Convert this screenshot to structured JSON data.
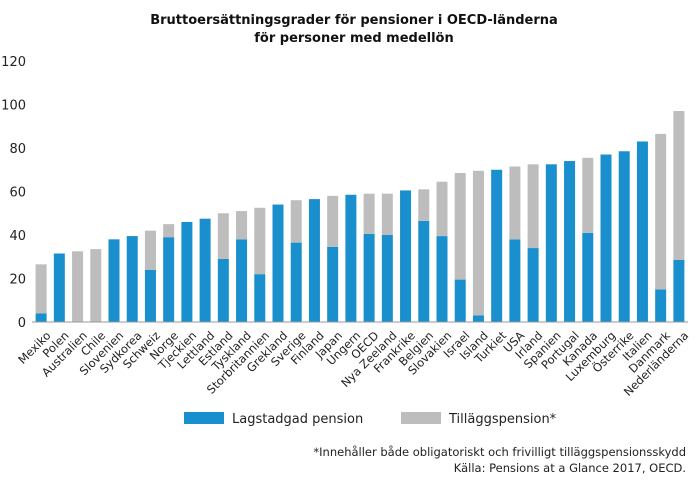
{
  "chart_data": {
    "type": "bar",
    "stacked": true,
    "title": [
      "Bruttoersättningsgrader för pensioner i OECD-länderna",
      "för personer med medellön"
    ],
    "xlabel": "",
    "ylabel": "",
    "ylim": [
      0,
      120
    ],
    "yticks": [
      0,
      20,
      40,
      60,
      80,
      100,
      120
    ],
    "grid": false,
    "legend_position": "bottom",
    "categories": [
      "Mexiko",
      "Polen",
      "Australien",
      "Chile",
      "Slovenien",
      "Sydkorea",
      "Schweiz",
      "Norge",
      "Tjeckien",
      "Lettland",
      "Estland",
      "Tyskland",
      "Storbritannien",
      "Grekland",
      "Sverige",
      "Finland",
      "Japan",
      "Ungern",
      "OECD",
      "Nya Zeeland",
      "Frankrike",
      "Belgien",
      "Slovakien",
      "Israel",
      "Island",
      "Turkiet",
      "USA",
      "Irland",
      "Spanien",
      "Portugal",
      "Kanada",
      "Luxemburg",
      "Österrike",
      "Italien",
      "Danmark",
      "Nederländerna"
    ],
    "series": [
      {
        "name": "Lagstadgad pension",
        "color": "#1a8fce",
        "values": [
          4,
          31.5,
          0,
          0,
          38,
          39.5,
          24,
          39,
          46,
          47.5,
          29,
          38,
          22,
          54,
          36.5,
          56.5,
          34.5,
          58.5,
          40.5,
          40,
          60.5,
          46.5,
          39.5,
          19.5,
          3,
          70,
          38,
          34,
          72.5,
          74,
          41,
          77,
          78.5,
          83,
          15,
          28.5
        ]
      },
      {
        "name": "Tilläggspension*",
        "color": "#bdbdbd",
        "values": [
          22.5,
          0,
          32.5,
          33.5,
          0,
          0,
          18,
          6,
          0,
          0,
          21,
          13,
          30.5,
          0,
          19.5,
          0,
          23.5,
          0,
          18.5,
          19,
          0,
          14.5,
          25,
          49,
          66.5,
          0,
          33.5,
          38.5,
          0,
          0,
          34.5,
          0,
          0,
          0,
          71.5,
          68.5
        ]
      }
    ],
    "footnotes": [
      "*Innehåller både obligatoriskt och frivilligt tilläggspensionsskydd",
      "Källa: Pensions at a Glance 2017, OECD."
    ]
  }
}
